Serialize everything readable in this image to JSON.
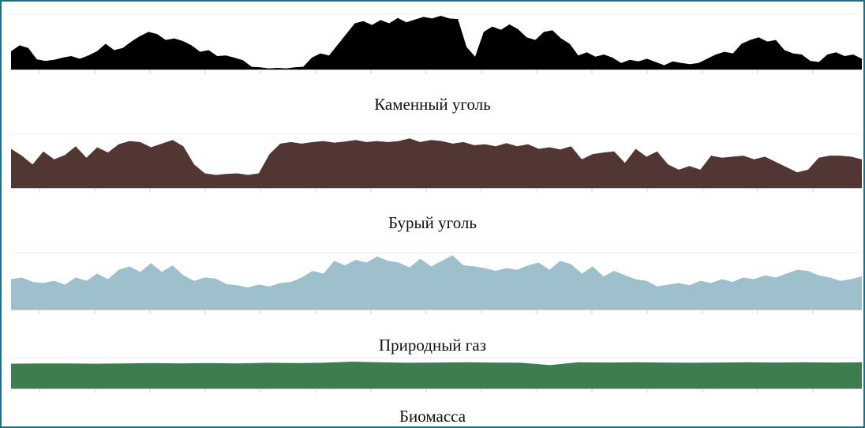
{
  "chart_data": [
    {
      "type": "area",
      "title": "Каменный уголь",
      "color": "#000000",
      "ylim": [
        0,
        1
      ],
      "values": [
        0.34,
        0.45,
        0.4,
        0.19,
        0.16,
        0.18,
        0.22,
        0.25,
        0.2,
        0.26,
        0.34,
        0.48,
        0.36,
        0.4,
        0.52,
        0.62,
        0.7,
        0.66,
        0.55,
        0.58,
        0.53,
        0.45,
        0.33,
        0.36,
        0.25,
        0.26,
        0.22,
        0.17,
        0.05,
        0.04,
        0.02,
        0.03,
        0.02,
        0.04,
        0.05,
        0.22,
        0.3,
        0.26,
        0.46,
        0.66,
        0.86,
        0.9,
        0.83,
        0.92,
        0.86,
        0.96,
        0.88,
        0.93,
        0.98,
        0.95,
        1.0,
        0.95,
        0.94,
        0.42,
        0.24,
        0.7,
        0.8,
        0.74,
        0.84,
        0.75,
        0.6,
        0.55,
        0.7,
        0.73,
        0.58,
        0.48,
        0.26,
        0.32,
        0.24,
        0.28,
        0.22,
        0.12,
        0.18,
        0.15,
        0.2,
        0.14,
        0.08,
        0.15,
        0.12,
        0.1,
        0.12,
        0.2,
        0.28,
        0.33,
        0.3,
        0.48,
        0.55,
        0.6,
        0.52,
        0.55,
        0.36,
        0.3,
        0.28,
        0.16,
        0.14,
        0.28,
        0.32,
        0.25,
        0.28,
        0.2
      ]
    },
    {
      "type": "area",
      "title": "Бурый уголь",
      "color": "#523634",
      "ylim": [
        0,
        1
      ],
      "values": [
        0.75,
        0.62,
        0.45,
        0.7,
        0.55,
        0.63,
        0.8,
        0.58,
        0.78,
        0.68,
        0.84,
        0.9,
        0.88,
        0.78,
        0.85,
        0.92,
        0.8,
        0.45,
        0.28,
        0.25,
        0.27,
        0.28,
        0.25,
        0.28,
        0.65,
        0.85,
        0.88,
        0.85,
        0.88,
        0.9,
        0.87,
        0.89,
        0.92,
        0.88,
        0.9,
        0.88,
        0.9,
        0.95,
        0.88,
        0.92,
        0.9,
        0.85,
        0.88,
        0.82,
        0.84,
        0.8,
        0.86,
        0.8,
        0.84,
        0.75,
        0.78,
        0.74,
        0.8,
        0.55,
        0.65,
        0.68,
        0.7,
        0.48,
        0.75,
        0.6,
        0.7,
        0.45,
        0.35,
        0.42,
        0.35,
        0.62,
        0.58,
        0.6,
        0.62,
        0.55,
        0.6,
        0.5,
        0.4,
        0.3,
        0.35,
        0.58,
        0.62,
        0.62,
        0.6,
        0.55
      ]
    },
    {
      "type": "area",
      "title": "Природный газ",
      "color": "#9ebfcc",
      "ylim": [
        0,
        1
      ],
      "values": [
        0.55,
        0.58,
        0.5,
        0.48,
        0.52,
        0.45,
        0.58,
        0.52,
        0.65,
        0.55,
        0.72,
        0.78,
        0.68,
        0.84,
        0.68,
        0.8,
        0.62,
        0.52,
        0.58,
        0.56,
        0.46,
        0.44,
        0.4,
        0.45,
        0.42,
        0.48,
        0.5,
        0.58,
        0.7,
        0.65,
        0.88,
        0.8,
        0.9,
        0.85,
        0.96,
        0.88,
        0.85,
        0.76,
        0.92,
        0.78,
        0.88,
        0.98,
        0.8,
        0.78,
        0.75,
        0.7,
        0.75,
        0.72,
        0.8,
        0.85,
        0.72,
        0.88,
        0.82,
        0.65,
        0.78,
        0.6,
        0.7,
        0.62,
        0.55,
        0.52,
        0.42,
        0.45,
        0.48,
        0.44,
        0.52,
        0.48,
        0.55,
        0.5,
        0.58,
        0.55,
        0.62,
        0.58,
        0.65,
        0.72,
        0.7,
        0.62,
        0.58,
        0.52,
        0.55,
        0.6
      ]
    },
    {
      "type": "area",
      "title": "Биомасса",
      "color": "#3d7d4f",
      "ylim": [
        0,
        1
      ],
      "values": [
        0.85,
        0.86,
        0.86,
        0.85,
        0.86,
        0.87,
        0.86,
        0.87,
        0.86,
        0.88,
        0.87,
        0.88,
        0.92,
        0.9,
        0.88,
        0.89,
        0.9,
        0.89,
        0.88,
        0.8,
        0.9,
        0.89,
        0.9,
        0.89,
        0.88,
        0.89,
        0.9,
        0.89,
        0.9,
        0.89,
        0.9
      ]
    }
  ]
}
